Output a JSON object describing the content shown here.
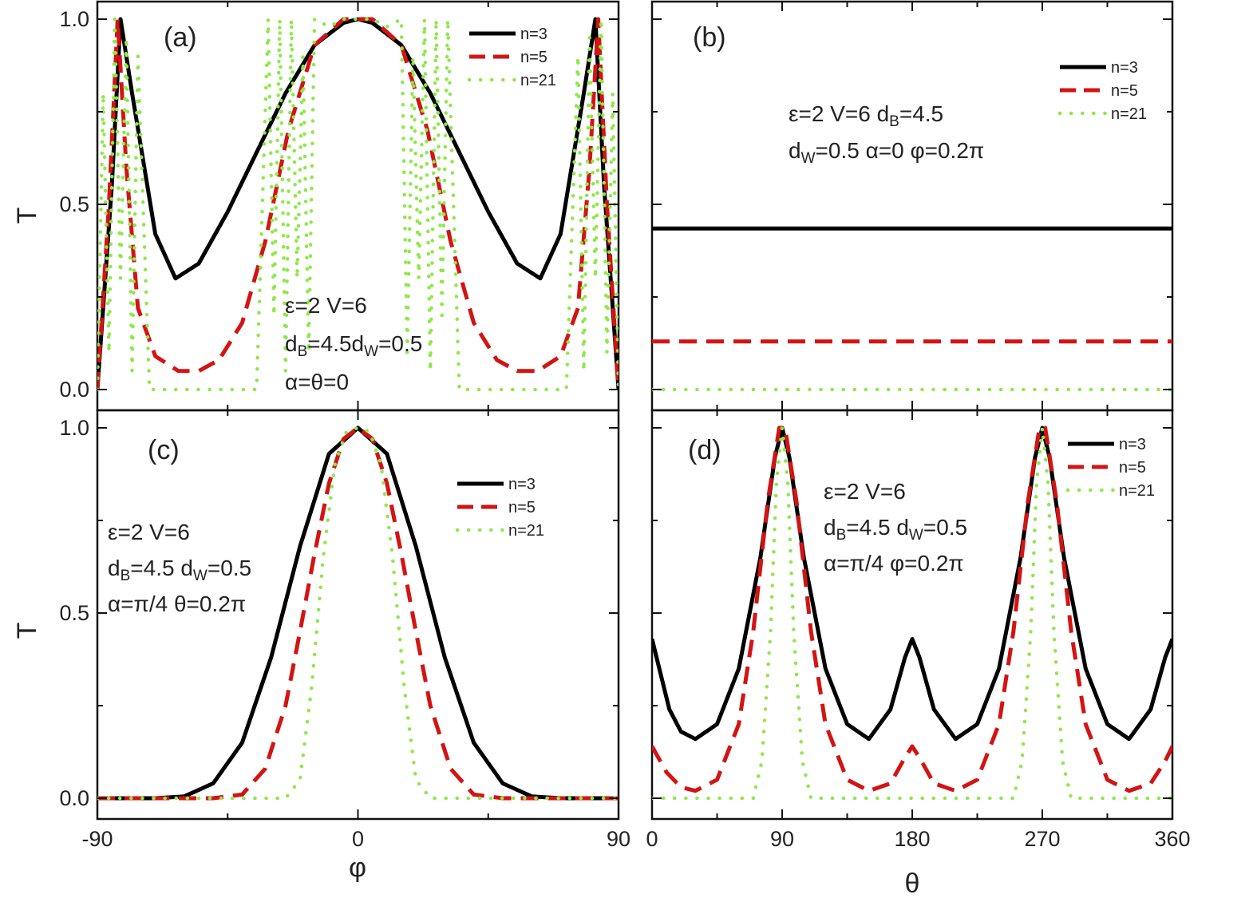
{
  "figure": {
    "ylabel_top": "T",
    "ylabel_bottom": "T",
    "xlabel_left": "φ",
    "xlabel_right": "θ"
  },
  "colors": {
    "n3": "#000000",
    "n5": "#d21414",
    "n21": "#8ee84a",
    "frame": "#111111"
  },
  "chart_data": [
    {
      "id": "a",
      "type": "line",
      "panel_label": "(a)",
      "x_range": [
        -90,
        90
      ],
      "ylim": [
        0,
        1
      ],
      "y_ticks": [
        "0.0",
        "0.5",
        "1.0"
      ],
      "x_ticks": [],
      "annotation": [
        "ε=2 V=6",
        "d_B=4.5d_W=0.5",
        "α=θ=0"
      ],
      "legend": {
        "placement": "top-right",
        "entries": [
          "n=3",
          "n=5",
          "n=21"
        ]
      },
      "series": [
        {
          "name": "n=3",
          "style": "solid",
          "x": [
            -90,
            -85,
            -82,
            -78,
            -70,
            -63,
            -55,
            -45,
            -35,
            -25,
            -15,
            -5,
            0,
            5,
            15,
            25,
            35,
            45,
            55,
            63,
            70,
            78,
            82,
            85,
            90
          ],
          "y": [
            0,
            0.55,
            1,
            0.8,
            0.42,
            0.3,
            0.34,
            0.48,
            0.64,
            0.8,
            0.93,
            0.99,
            1,
            0.99,
            0.93,
            0.8,
            0.64,
            0.48,
            0.34,
            0.3,
            0.42,
            0.8,
            1,
            0.55,
            0
          ]
        },
        {
          "name": "n=5",
          "style": "dashed",
          "x": [
            -90,
            -86,
            -83,
            -80,
            -76,
            -70,
            -62,
            -55,
            -48,
            -40,
            -32,
            -24,
            -15,
            -5,
            0,
            5,
            15,
            24,
            32,
            40,
            48,
            55,
            62,
            70,
            76,
            80,
            83,
            86,
            90
          ],
          "y": [
            0,
            0.5,
            1,
            0.6,
            0.22,
            0.09,
            0.05,
            0.05,
            0.08,
            0.18,
            0.4,
            0.7,
            0.93,
            1,
            1,
            1,
            0.93,
            0.7,
            0.4,
            0.18,
            0.08,
            0.05,
            0.05,
            0.09,
            0.22,
            0.6,
            1,
            0.5,
            0
          ]
        },
        {
          "name": "n=21",
          "style": "dotted",
          "x": [
            -90,
            -88,
            -86,
            -84,
            -82,
            -80,
            -78,
            -76,
            -72,
            -60,
            -45,
            -35,
            -31,
            -29,
            -27,
            -25,
            -23,
            -21,
            -19,
            -17,
            -15,
            -10,
            -5,
            0,
            5,
            10,
            15,
            17,
            19,
            21,
            23,
            25,
            27,
            29,
            31,
            35,
            45,
            60,
            72,
            76,
            78,
            80,
            82,
            84,
            86,
            88,
            90
          ],
          "y": [
            0,
            0.8,
            0.1,
            1,
            0.3,
            0.95,
            0.05,
            0.9,
            0,
            0,
            0,
            0,
            1,
            0.2,
            1,
            0.05,
            1,
            0.3,
            0.9,
            0.1,
            1,
            0.98,
            1,
            1,
            1,
            0.98,
            1,
            0.1,
            0.9,
            0.3,
            1,
            0.05,
            1,
            0.2,
            1,
            0,
            0,
            0,
            0,
            0.9,
            0.05,
            0.95,
            0.3,
            1,
            0.1,
            0.8,
            0
          ]
        }
      ]
    },
    {
      "id": "b",
      "type": "line",
      "panel_label": "(b)",
      "x_range": [
        0,
        360
      ],
      "ylim": [
        0,
        1
      ],
      "y_ticks": [],
      "x_ticks": [],
      "annotation": [
        "ε=2 V=6 d_B=4.5",
        "d_W=0.5 α=0 φ=0.2π"
      ],
      "legend": {
        "placement": "top-right",
        "entries": [
          "n=3",
          "n=5",
          "n=21"
        ]
      },
      "series": [
        {
          "name": "n=3",
          "style": "solid",
          "x": [
            0,
            360
          ],
          "y": [
            0.435,
            0.435
          ]
        },
        {
          "name": "n=5",
          "style": "dashed",
          "x": [
            0,
            360
          ],
          "y": [
            0.13,
            0.13
          ]
        },
        {
          "name": "n=21",
          "style": "dotted",
          "x": [
            0,
            360
          ],
          "y": [
            0.0,
            0.0
          ]
        }
      ]
    },
    {
      "id": "c",
      "type": "line",
      "panel_label": "(c)",
      "x_range": [
        -90,
        90
      ],
      "ylim": [
        0,
        1
      ],
      "y_ticks": [
        "0.0",
        "0.5",
        "1.0"
      ],
      "x_ticks": [
        "-90",
        "0",
        "90"
      ],
      "annotation": [
        "ε=2 V=6",
        "d_B=4.5 d_W=0.5",
        "α=π/4 θ=0.2π"
      ],
      "legend": {
        "placement": "top-right",
        "entries": [
          "n=3",
          "n=5",
          "n=21"
        ]
      },
      "series": [
        {
          "name": "n=3",
          "style": "solid",
          "x": [
            -90,
            -70,
            -60,
            -50,
            -40,
            -30,
            -20,
            -10,
            0,
            10,
            20,
            30,
            40,
            50,
            60,
            70,
            90
          ],
          "y": [
            0,
            0,
            0.005,
            0.04,
            0.15,
            0.38,
            0.68,
            0.93,
            1,
            0.93,
            0.68,
            0.38,
            0.15,
            0.04,
            0.005,
            0,
            0
          ]
        },
        {
          "name": "n=5",
          "style": "dashed",
          "x": [
            -90,
            -50,
            -40,
            -32,
            -25,
            -20,
            -15,
            -10,
            -5,
            0,
            5,
            10,
            15,
            20,
            25,
            32,
            40,
            50,
            90
          ],
          "y": [
            0,
            0,
            0.01,
            0.08,
            0.25,
            0.45,
            0.66,
            0.85,
            0.97,
            1,
            0.97,
            0.85,
            0.66,
            0.45,
            0.25,
            0.08,
            0.01,
            0,
            0
          ]
        },
        {
          "name": "n=21",
          "style": "dotted",
          "x": [
            -90,
            -25,
            -20,
            -16,
            -12,
            -8,
            -4,
            0,
            4,
            8,
            12,
            16,
            20,
            25,
            90
          ],
          "y": [
            0,
            0,
            0.05,
            0.3,
            0.65,
            0.9,
            0.99,
            1,
            0.99,
            0.9,
            0.65,
            0.3,
            0.05,
            0,
            0
          ]
        }
      ]
    },
    {
      "id": "d",
      "type": "line",
      "panel_label": "(d)",
      "x_range": [
        0,
        360
      ],
      "ylim": [
        0,
        1
      ],
      "y_ticks": [],
      "x_ticks": [
        "0",
        "90",
        "180",
        "270",
        "360"
      ],
      "annotation": [
        "ε=2 V=6",
        "d_B=4.5 d_W=0.5",
        "α=π/4 φ=0.2π"
      ],
      "legend": {
        "placement": "top-right",
        "entries": [
          "n=3",
          "n=5",
          "n=21"
        ]
      },
      "series": [
        {
          "name": "n=3",
          "style": "solid",
          "x": [
            0,
            5,
            12,
            20,
            30,
            45,
            60,
            75,
            85,
            90,
            95,
            105,
            120,
            135,
            150,
            165,
            175,
            180,
            185,
            195,
            210,
            225,
            240,
            255,
            265,
            270,
            275,
            285,
            300,
            315,
            330,
            345,
            355,
            360
          ],
          "y": [
            0.43,
            0.35,
            0.24,
            0.18,
            0.16,
            0.2,
            0.35,
            0.65,
            0.92,
            1,
            0.92,
            0.65,
            0.35,
            0.2,
            0.16,
            0.24,
            0.38,
            0.43,
            0.38,
            0.24,
            0.16,
            0.2,
            0.35,
            0.65,
            0.92,
            1,
            0.92,
            0.65,
            0.35,
            0.2,
            0.16,
            0.24,
            0.38,
            0.43
          ]
        },
        {
          "name": "n=5",
          "style": "dashed",
          "x": [
            0,
            10,
            20,
            30,
            45,
            60,
            70,
            80,
            88,
            92,
            100,
            110,
            120,
            135,
            150,
            165,
            175,
            180,
            185,
            195,
            210,
            225,
            240,
            250,
            260,
            268,
            272,
            280,
            290,
            300,
            315,
            330,
            345,
            355,
            360
          ],
          "y": [
            0.14,
            0.07,
            0.03,
            0.02,
            0.05,
            0.2,
            0.45,
            0.8,
            1,
            1,
            0.8,
            0.45,
            0.2,
            0.05,
            0.02,
            0.04,
            0.11,
            0.14,
            0.11,
            0.04,
            0.02,
            0.05,
            0.2,
            0.45,
            0.8,
            1,
            1,
            0.8,
            0.45,
            0.2,
            0.05,
            0.02,
            0.04,
            0.1,
            0.14
          ]
        },
        {
          "name": "n=21",
          "style": "dotted",
          "x": [
            0,
            70,
            76,
            82,
            86,
            90,
            94,
            98,
            104,
            110,
            250,
            256,
            262,
            266,
            270,
            274,
            278,
            284,
            290,
            360
          ],
          "y": [
            0,
            0,
            0.1,
            0.45,
            0.85,
            1,
            0.85,
            0.45,
            0.1,
            0,
            0,
            0.1,
            0.45,
            0.85,
            1,
            0.85,
            0.45,
            0.1,
            0,
            0
          ]
        }
      ]
    }
  ]
}
